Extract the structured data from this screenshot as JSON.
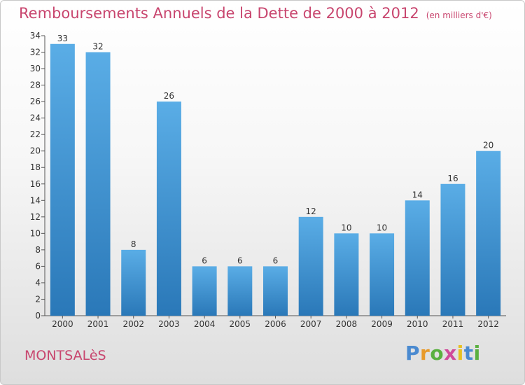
{
  "chart_data": {
    "type": "bar",
    "title": "Remboursements Annuels de la Dette de 2000 à 2012",
    "unit_label": "(en milliers d'€)",
    "categories": [
      "2000",
      "2001",
      "2002",
      "2003",
      "2004",
      "2005",
      "2006",
      "2007",
      "2008",
      "2009",
      "2010",
      "2011",
      "2012"
    ],
    "values": [
      33,
      32,
      8,
      26,
      6,
      6,
      6,
      12,
      10,
      10,
      14,
      16,
      20
    ],
    "ylim": [
      0,
      34
    ],
    "yticks": [
      0,
      2,
      4,
      6,
      8,
      10,
      12,
      14,
      16,
      18,
      20,
      22,
      24,
      26,
      28,
      30,
      32,
      34
    ],
    "grid": false,
    "xlabel": "",
    "ylabel": ""
  },
  "colors": {
    "accent": "#c8456e",
    "bar_light": "#5aade6",
    "bar_dark": "#2a78b8"
  },
  "footer": {
    "town": "MONTSALèS",
    "logo": [
      "P",
      "r",
      "o",
      "x",
      "i",
      "t",
      "i"
    ],
    "logo_colors": [
      "#4a8ad0",
      "#e89a2a",
      "#5ab040",
      "#d04a9a",
      "#e8c020",
      "#4a8ad0",
      "#5ab040"
    ]
  }
}
